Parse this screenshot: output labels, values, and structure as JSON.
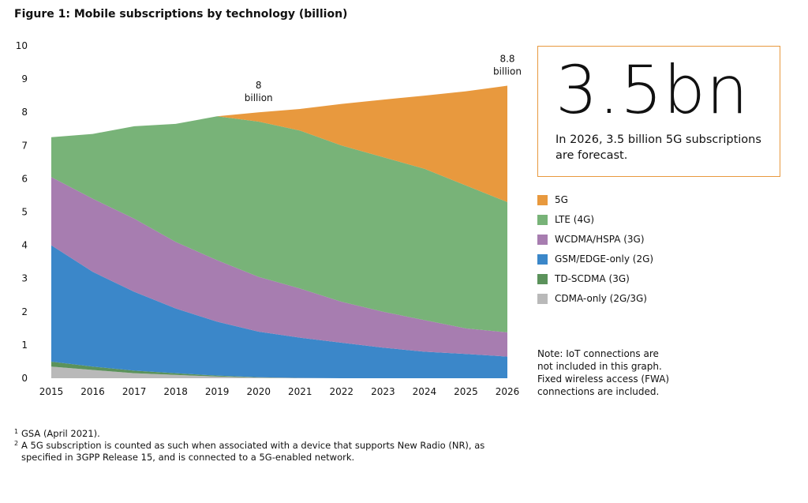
{
  "chart_data": {
    "type": "stacked_area",
    "title": "Figure 1: Mobile subscriptions by technology (billion)",
    "x": [
      2015,
      2016,
      2017,
      2018,
      2019,
      2020,
      2021,
      2022,
      2023,
      2024,
      2025,
      2026
    ],
    "xlim": [
      2015,
      2026
    ],
    "xticks": [
      2015,
      2016,
      2017,
      2018,
      2019,
      2020,
      2021,
      2022,
      2023,
      2024,
      2025,
      2026
    ],
    "ylim": [
      0,
      10
    ],
    "yticks": [
      0,
      1,
      2,
      3,
      4,
      5,
      6,
      7,
      8,
      9,
      10
    ],
    "series": [
      {
        "name": "CDMA-only (2G/3G)",
        "color": "#b9b9b9",
        "values": [
          0.35,
          0.25,
          0.15,
          0.1,
          0.05,
          0.02,
          0.01,
          0,
          0,
          0,
          0,
          0
        ]
      },
      {
        "name": "TD-SCDMA (3G)",
        "color": "#5b925b",
        "values": [
          0.15,
          0.1,
          0.08,
          0.05,
          0.03,
          0.01,
          0,
          0,
          0,
          0,
          0,
          0
        ]
      },
      {
        "name": "GSM/EDGE-only (2G)",
        "color": "#3b87c9",
        "values": [
          3.5,
          2.85,
          2.37,
          1.95,
          1.62,
          1.37,
          1.21,
          1.07,
          0.92,
          0.8,
          0.73,
          0.65
        ]
      },
      {
        "name": "WCDMA/HSPA (3G)",
        "color": "#a77db0",
        "values": [
          2.05,
          2.2,
          2.2,
          2.0,
          1.85,
          1.65,
          1.48,
          1.23,
          1.08,
          0.95,
          0.77,
          0.73
        ]
      },
      {
        "name": "LTE (4G)",
        "color": "#78b378",
        "values": [
          1.2,
          1.95,
          2.78,
          3.55,
          4.33,
          4.67,
          4.75,
          4.7,
          4.65,
          4.55,
          4.3,
          3.92
        ]
      },
      {
        "name": "5G",
        "color": "#e8993e",
        "values": [
          0,
          0,
          0,
          0,
          0,
          0.28,
          0.65,
          1.25,
          1.73,
          2.2,
          2.83,
          3.5
        ]
      }
    ],
    "annotations": [
      {
        "x": 2020,
        "y": 8,
        "label": "8",
        "unit": "billion"
      },
      {
        "x": 2026,
        "y": 8.8,
        "label": "8.8",
        "unit": "billion"
      }
    ],
    "callout": {
      "headline": "3.5bn",
      "text": "In 2026, 3.5 billion 5G subscriptions are forecast."
    },
    "note": "Note: IoT connections are not included in this graph. Fixed wireless access (FWA) connections are included.",
    "footnotes": [
      {
        "marker": "1",
        "text": "GSA (April 2021)."
      },
      {
        "marker": "2",
        "text": "A 5G subscription is counted as such when associated with a device that supports New Radio (NR), as specified in 3GPP Release 15, and is connected to a 5G-enabled network."
      }
    ]
  }
}
